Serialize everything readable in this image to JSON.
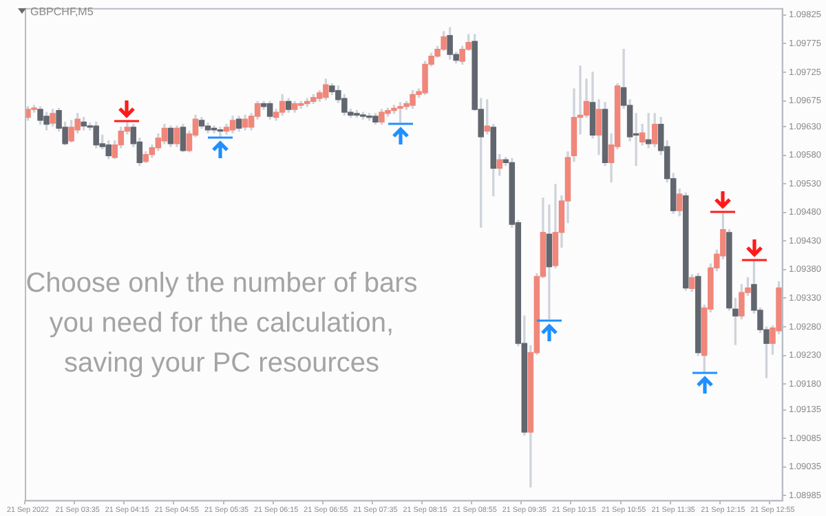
{
  "chart_data": {
    "type": "candlestick",
    "title": "GBPCHF,M5",
    "categories": [
      "21 Sep 2022",
      null,
      null,
      null,
      null,
      null,
      null,
      null,
      "21 Sep 03:35",
      null,
      null,
      null,
      null,
      null,
      null,
      null,
      "21 Sep 04:15",
      null,
      null,
      null,
      null,
      null,
      null,
      null,
      "21 Sep 04:55",
      null,
      null,
      null,
      null,
      null,
      null,
      null,
      "21 Sep 05:35",
      null,
      null,
      null,
      null,
      null,
      null,
      null,
      "21 Sep 06:15",
      null,
      null,
      null,
      null,
      null,
      null,
      null,
      "21 Sep 06:55",
      null,
      null,
      null,
      null,
      null,
      null,
      null,
      "21 Sep 07:35",
      null,
      null,
      null,
      null,
      null,
      null,
      null,
      "21 Sep 08:15",
      null,
      null,
      null,
      null,
      null,
      null,
      null,
      "21 Sep 08:55",
      null,
      null,
      null,
      null,
      null,
      null,
      null,
      "21 Sep 09:35",
      null,
      null,
      null,
      null,
      null,
      null,
      null,
      "21 Sep 10:15",
      null,
      null,
      null,
      null,
      null,
      null,
      null,
      "21 Sep 10:55",
      null,
      null,
      null,
      null,
      null,
      null,
      null,
      "21 Sep 11:35",
      null,
      null,
      null,
      null,
      null,
      null,
      null,
      "21 Sep 12:15",
      null,
      null,
      null,
      null,
      null,
      null,
      null,
      "21 Sep 12:55",
      null
    ],
    "ohlc": [
      [
        1.09646,
        1.09665,
        1.09641,
        1.0966
      ],
      [
        1.0966,
        1.09667,
        1.09655,
        1.09662
      ],
      [
        1.0966,
        1.09665,
        1.09634,
        1.09641
      ],
      [
        1.09648,
        1.09655,
        1.09624,
        1.09634
      ],
      [
        1.09636,
        1.0966,
        1.09631,
        1.09653
      ],
      [
        1.09658,
        1.09662,
        1.09622,
        1.09627
      ],
      [
        1.09629,
        1.09638,
        1.09598,
        1.096
      ],
      [
        1.09605,
        1.09641,
        1.09603,
        1.09629
      ],
      [
        1.09624,
        1.09653,
        1.09619,
        1.09643
      ],
      [
        1.09638,
        1.09646,
        1.09624,
        1.09631
      ],
      [
        1.09631,
        1.09636,
        1.09624,
        1.09629
      ],
      [
        1.09631,
        1.09638,
        1.09593,
        1.09598
      ],
      [
        1.096,
        1.09615,
        1.09591,
        1.09595
      ],
      [
        1.09598,
        1.09605,
        1.09574,
        1.09579
      ],
      [
        1.09576,
        1.09605,
        1.09574,
        1.09598
      ],
      [
        1.09598,
        1.09629,
        1.09593,
        1.09622
      ],
      [
        1.09622,
        1.09638,
        1.09617,
        1.09629
      ],
      [
        1.09629,
        1.09634,
        1.09595,
        1.096
      ],
      [
        1.09603,
        1.0961,
        1.09562,
        1.09567
      ],
      [
        1.09569,
        1.09586,
        1.09567,
        1.09581
      ],
      [
        1.09581,
        1.09598,
        1.09576,
        1.09593
      ],
      [
        1.09593,
        1.09617,
        1.09588,
        1.0961
      ],
      [
        1.09605,
        1.09634,
        1.096,
        1.09627
      ],
      [
        1.09627,
        1.09631,
        1.09595,
        1.096
      ],
      [
        1.096,
        1.09631,
        1.09595,
        1.09627
      ],
      [
        1.09629,
        1.09634,
        1.09586,
        1.09588
      ],
      [
        1.09588,
        1.09622,
        1.09586,
        1.09617
      ],
      [
        1.09615,
        1.0965,
        1.09612,
        1.09643
      ],
      [
        1.09641,
        1.09646,
        1.09627,
        1.09631
      ],
      [
        1.09631,
        1.09636,
        1.09619,
        1.09624
      ],
      [
        1.09627,
        1.09631,
        1.09619,
        1.09624
      ],
      [
        1.09624,
        1.09629,
        1.09612,
        1.09622
      ],
      [
        1.09622,
        1.09634,
        1.09617,
        1.09629
      ],
      [
        1.09624,
        1.09648,
        1.09619,
        1.09641
      ],
      [
        1.09643,
        1.09648,
        1.09622,
        1.09627
      ],
      [
        1.09629,
        1.0965,
        1.09624,
        1.09643
      ],
      [
        1.09629,
        1.09653,
        1.09624,
        1.09648
      ],
      [
        1.09648,
        1.09674,
        1.09643,
        1.0967
      ],
      [
        1.0967,
        1.09674,
        1.0966,
        1.09665
      ],
      [
        1.0967,
        1.09674,
        1.09643,
        1.09648
      ],
      [
        1.09646,
        1.0966,
        1.09641,
        1.09655
      ],
      [
        1.09655,
        1.09686,
        1.0965,
        1.09674
      ],
      [
        1.09674,
        1.09679,
        1.09655,
        1.0966
      ],
      [
        1.0966,
        1.09674,
        1.09655,
        1.0967
      ],
      [
        1.09667,
        1.09674,
        1.09662,
        1.0967
      ],
      [
        1.0967,
        1.09679,
        1.09665,
        1.09674
      ],
      [
        1.09674,
        1.09686,
        1.0967,
        1.09681
      ],
      [
        1.09679,
        1.09693,
        1.09674,
        1.09689
      ],
      [
        1.09681,
        1.09713,
        1.09677,
        1.09703
      ],
      [
        1.09701,
        1.09705,
        1.09686,
        1.09691
      ],
      [
        1.09693,
        1.09701,
        1.09672,
        1.09677
      ],
      [
        1.09679,
        1.09686,
        1.0965,
        1.09655
      ],
      [
        1.09655,
        1.0966,
        1.09646,
        1.0965
      ],
      [
        1.09653,
        1.09658,
        1.09646,
        1.0965
      ],
      [
        1.0965,
        1.09655,
        1.09643,
        1.09648
      ],
      [
        1.09648,
        1.09653,
        1.09641,
        1.09646
      ],
      [
        1.09648,
        1.09653,
        1.09634,
        1.09638
      ],
      [
        1.09638,
        1.0966,
        1.09634,
        1.09655
      ],
      [
        1.09653,
        1.09662,
        1.09648,
        1.09658
      ],
      [
        1.09658,
        1.09667,
        1.09653,
        1.09662
      ],
      [
        1.09662,
        1.09672,
        1.09638,
        1.09665
      ],
      [
        1.09665,
        1.09674,
        1.0966,
        1.0967
      ],
      [
        1.09667,
        1.09693,
        1.09662,
        1.09686
      ],
      [
        1.09686,
        1.09696,
        1.09681,
        1.09691
      ],
      [
        1.09689,
        1.09744,
        1.09686,
        1.09739
      ],
      [
        1.09739,
        1.09758,
        1.09736,
        1.09753
      ],
      [
        1.09753,
        1.0977,
        1.09751,
        1.09765
      ],
      [
        1.09765,
        1.09796,
        1.09763,
        1.09787
      ],
      [
        1.09789,
        1.09803,
        1.09748,
        1.09756
      ],
      [
        1.09756,
        1.0976,
        1.09741,
        1.09746
      ],
      [
        1.09744,
        1.0977,
        1.09739,
        1.09765
      ],
      [
        1.09765,
        1.09791,
        1.09763,
        1.09777
      ],
      [
        1.09779,
        1.09791,
        1.09658,
        1.0966
      ],
      [
        1.0966,
        1.09679,
        1.09454,
        1.09612
      ],
      [
        1.09622,
        1.09677,
        1.09617,
        1.09631
      ],
      [
        1.09629,
        1.09634,
        1.09509,
        1.09557
      ],
      [
        1.09557,
        1.09581,
        1.09545,
        1.09572
      ],
      [
        1.09572,
        1.09576,
        1.09562,
        1.09567
      ],
      [
        1.09567,
        1.09574,
        1.09454,
        1.09459
      ],
      [
        1.09462,
        1.09466,
        1.09247,
        1.09251
      ],
      [
        1.09251,
        1.09299,
        1.09091,
        1.09096
      ],
      [
        1.09096,
        1.09247,
        1.09,
        1.09235
      ],
      [
        1.09235,
        1.09373,
        1.09232,
        1.09368
      ],
      [
        1.09368,
        1.09505,
        1.09366,
        1.09445
      ],
      [
        1.09442,
        1.09493,
        1.09294,
        1.09385
      ],
      [
        1.09387,
        1.09529,
        1.09383,
        1.09445
      ],
      [
        1.09445,
        1.09509,
        1.09419,
        1.095
      ],
      [
        1.095,
        1.09586,
        1.09462,
        1.09576
      ],
      [
        1.09579,
        1.09696,
        1.09569,
        1.09646
      ],
      [
        1.09646,
        1.09736,
        1.09617,
        1.0965
      ],
      [
        1.0965,
        1.09713,
        1.09646,
        1.09674
      ],
      [
        1.09672,
        1.09725,
        1.0961,
        1.09615
      ],
      [
        1.09615,
        1.09677,
        1.09581,
        1.0966
      ],
      [
        1.0966,
        1.09672,
        1.09562,
        1.09567
      ],
      [
        1.09567,
        1.09617,
        1.09533,
        1.09598
      ],
      [
        1.09595,
        1.09705,
        1.09591,
        1.09701
      ],
      [
        1.09698,
        1.09765,
        1.09662,
        1.09667
      ],
      [
        1.09667,
        1.09677,
        1.09605,
        1.09612
      ],
      [
        1.09617,
        1.09653,
        1.09562,
        1.09615
      ],
      [
        1.09603,
        1.09634,
        1.09598,
        1.09619
      ],
      [
        1.09607,
        1.09653,
        1.09593,
        1.096
      ],
      [
        1.096,
        1.09653,
        1.09595,
        1.09634
      ],
      [
        1.09634,
        1.09646,
        1.09581,
        1.09588
      ],
      [
        1.09595,
        1.09605,
        1.09533,
        1.09539
      ],
      [
        1.09539,
        1.09548,
        1.09478,
        1.09483
      ],
      [
        1.09483,
        1.09521,
        1.09474,
        1.09512
      ],
      [
        1.09509,
        1.09514,
        1.09344,
        1.09348
      ],
      [
        1.09347,
        1.09371,
        1.09342,
        1.09366
      ],
      [
        1.09368,
        1.09373,
        1.0923,
        1.09235
      ],
      [
        1.0923,
        1.09318,
        1.09201,
        1.09313
      ],
      [
        1.09311,
        1.0939,
        1.09306,
        1.09383
      ],
      [
        1.09383,
        1.09414,
        1.09378,
        1.09407
      ],
      [
        1.09404,
        1.09478,
        1.09399,
        1.0945
      ],
      [
        1.09445,
        1.0945,
        1.09309,
        1.09313
      ],
      [
        1.09311,
        1.0933,
        1.09249,
        1.09299
      ],
      [
        1.09299,
        1.09354,
        1.09294,
        1.0934
      ],
      [
        1.0934,
        1.09366,
        1.09335,
        1.09348
      ],
      [
        1.09354,
        1.09395,
        1.09304,
        1.09309
      ],
      [
        1.09309,
        1.09313,
        1.0927,
        1.09275
      ],
      [
        1.09275,
        1.0928,
        1.09191,
        1.09251
      ],
      [
        1.09251,
        1.09282,
        1.09232,
        1.09278
      ],
      [
        1.09273,
        1.09359,
        1.09268,
        1.09348
      ]
    ],
    "colors": [
      "#f0877a",
      "#f0877a",
      "#62666e",
      "#62666e",
      "#f0877a",
      "#62666e",
      "#62666e",
      "#f0877a",
      "#f0877a",
      "#62666e",
      "#62666e",
      "#62666e",
      "#62666e",
      "#62666e",
      "#f0877a",
      "#f0877a",
      "#f0877a",
      "#62666e",
      "#62666e",
      "#f0877a",
      "#f0877a",
      "#f0877a",
      "#f0877a",
      "#62666e",
      "#f0877a",
      "#62666e",
      "#f0877a",
      "#f0877a",
      "#62666e",
      "#62666e",
      "#62666e",
      "#62666e",
      "#f0877a",
      "#f0877a",
      "#62666e",
      "#f0877a",
      "#f0877a",
      "#f0877a",
      "#62666e",
      "#62666e",
      "#f0877a",
      "#f0877a",
      "#62666e",
      "#f0877a",
      "#f0877a",
      "#f0877a",
      "#f0877a",
      "#f0877a",
      "#f0877a",
      "#62666e",
      "#62666e",
      "#62666e",
      "#62666e",
      "#62666e",
      "#62666e",
      "#62666e",
      "#62666e",
      "#f0877a",
      "#f0877a",
      "#f0877a",
      "#f0877a",
      "#f0877a",
      "#f0877a",
      "#f0877a",
      "#f0877a",
      "#f0877a",
      "#f0877a",
      "#f0877a",
      "#62666e",
      "#62666e",
      "#f0877a",
      "#f0877a",
      "#62666e",
      "#62666e",
      "#f0877a",
      "#62666e",
      "#f0877a",
      "#62666e",
      "#62666e",
      "#62666e",
      "#62666e",
      "#f0877a",
      "#f0877a",
      "#f0877a",
      "#62666e",
      "#f0877a",
      "#f0877a",
      "#f0877a",
      "#f0877a",
      "#f0877a",
      "#f0877a",
      "#62666e",
      "#f0877a",
      "#62666e",
      "#f0877a",
      "#f0877a",
      "#62666e",
      "#62666e",
      "#62666e",
      "#f0877a",
      "#62666e",
      "#f0877a",
      "#62666e",
      "#62666e",
      "#62666e",
      "#f0877a",
      "#62666e",
      "#f0877a",
      "#62666e",
      "#f0877a",
      "#f0877a",
      "#f0877a",
      "#f0877a",
      "#62666e",
      "#62666e",
      "#f0877a",
      "#f0877a",
      "#62666e",
      "#62666e",
      "#62666e",
      "#f0877a",
      "#f0877a"
    ],
    "ylim": [
      1.08977,
      1.09837
    ],
    "yticks": [
      {
        "value": 1.09825,
        "label": "1.09825"
      },
      {
        "value": 1.09775,
        "label": "1.09775"
      },
      {
        "value": 1.09725,
        "label": "1.09725"
      },
      {
        "value": 1.09675,
        "label": "1.09675"
      },
      {
        "value": 1.0963,
        "label": "1.09630"
      },
      {
        "value": 1.0958,
        "label": "1.09580"
      },
      {
        "value": 1.0953,
        "label": "1.09530"
      },
      {
        "value": 1.0948,
        "label": "1.09480"
      },
      {
        "value": 1.0943,
        "label": "1.09430"
      },
      {
        "value": 1.0938,
        "label": "1.09380"
      },
      {
        "value": 1.0933,
        "label": "1.09330"
      },
      {
        "value": 1.0928,
        "label": "1.09280"
      },
      {
        "value": 1.0923,
        "label": "1.09230"
      },
      {
        "value": 1.0918,
        "label": "1.09180"
      },
      {
        "value": 1.09135,
        "label": "1.09135"
      },
      {
        "value": 1.09085,
        "label": "1.09085"
      },
      {
        "value": 1.09035,
        "label": "1.09035"
      },
      {
        "value": 1.08985,
        "label": "1.08985"
      }
    ],
    "annotations": [
      "Choose only the number of bars you need for the calculation, saving your PC resources"
    ]
  }
}
